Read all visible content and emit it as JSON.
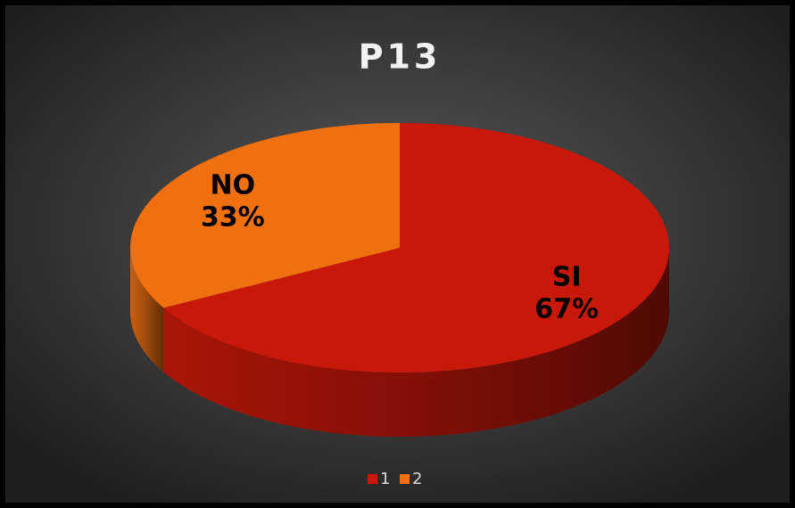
{
  "chart_data": {
    "type": "pie",
    "title": "P13",
    "categories": [
      "SI",
      "NO"
    ],
    "values": [
      67,
      33
    ],
    "value_labels": [
      "67%",
      "33%"
    ],
    "colors": [
      "#c8180a",
      "#f07010"
    ],
    "legend": [
      "1",
      "2"
    ],
    "legend_position": "bottom"
  }
}
